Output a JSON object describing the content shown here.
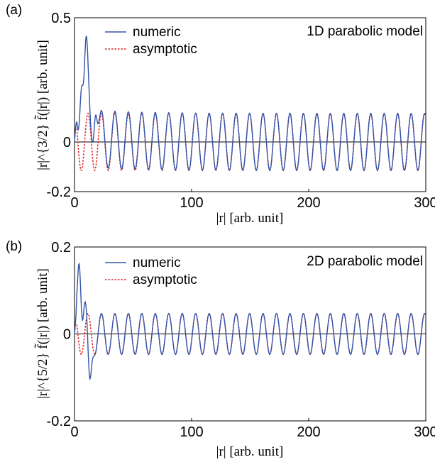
{
  "chart_data": [
    {
      "type": "line",
      "panel_label": "(a)",
      "annotation": "1D parabolic model",
      "xlabel": "|r| [arb. unit]",
      "ylabel": "|r|^{3/2} f̃(|r|) [arb. unit]",
      "xlim": [
        0,
        300
      ],
      "ylim": [
        -0.2,
        0.5
      ],
      "xticks": [
        "0",
        "100",
        "200",
        "300"
      ],
      "yticks": [
        "-0.2",
        "0",
        "0.5"
      ],
      "ytick_values": [
        -0.2,
        0,
        0.5
      ],
      "zero_line": true,
      "legend_position": "top-center",
      "period": 11.5,
      "series": [
        {
          "name": "numeric",
          "color": "#3355aa",
          "style": "solid",
          "amplitude": 0.115,
          "initial_peaks": [
            {
              "x": 6,
              "y": 0.28
            },
            {
              "x": 10,
              "y": 0.4
            },
            {
              "x": 18,
              "y": 0.17
            }
          ],
          "offset": 0.02
        },
        {
          "name": "asymptotic",
          "color": "#e02020",
          "style": "dotted",
          "amplitude": 0.115
        }
      ]
    },
    {
      "type": "line",
      "panel_label": "(b)",
      "annotation": "2D parabolic model",
      "xlabel": "|r| [arb. unit]",
      "ylabel": "|r|^{5/2} f̃(|r|) [arb. unit]",
      "xlim": [
        0,
        300
      ],
      "ylim": [
        -0.2,
        0.2
      ],
      "xticks": [
        "0",
        "100",
        "200",
        "300"
      ],
      "yticks": [
        "-0.2",
        "0",
        "0.2"
      ],
      "ytick_values": [
        -0.2,
        0,
        0.2
      ],
      "zero_line": true,
      "legend_position": "top-center",
      "period": 11.5,
      "series": [
        {
          "name": "numeric",
          "color": "#3355aa",
          "style": "solid",
          "amplitude": 0.047,
          "initial_peaks": [
            {
              "x": 4,
              "y": 0.195
            },
            {
              "x": 13,
              "y": -0.135
            },
            {
              "x": 9,
              "y": 0.08
            }
          ],
          "offset": 0.0
        },
        {
          "name": "asymptotic",
          "color": "#e02020",
          "style": "dotted",
          "amplitude": 0.047
        }
      ]
    }
  ]
}
